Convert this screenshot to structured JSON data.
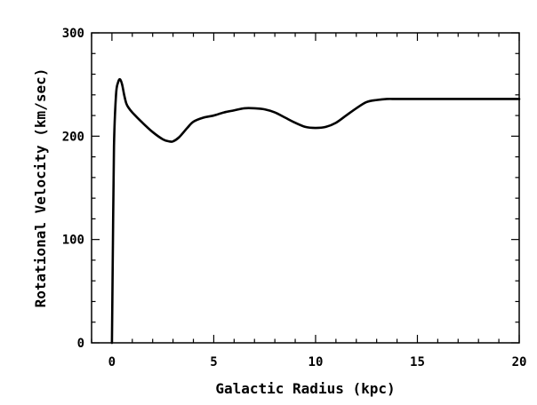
{
  "chart_data": {
    "type": "line",
    "title": "",
    "xlabel": "Galactic Radius (kpc)",
    "ylabel": "Rotational Velocity (km/sec)",
    "xlim": [
      -1,
      20
    ],
    "ylim": [
      0,
      300
    ],
    "x_ticks": [
      0,
      5,
      10,
      15,
      20
    ],
    "y_ticks": [
      0,
      100,
      200,
      300
    ],
    "x_tick_labels": [
      "0",
      "5",
      "10",
      "15",
      "20"
    ],
    "y_tick_labels": [
      "0",
      "100",
      "200",
      "300"
    ],
    "grid": false,
    "legend": "none",
    "series": [
      {
        "color": "#000000",
        "x": [
          0.0,
          0.05,
          0.1,
          0.2,
          0.3,
          0.4,
          0.5,
          0.6,
          0.7,
          0.8,
          1.0,
          1.5,
          2.0,
          2.5,
          2.8,
          3.0,
          3.3,
          3.7,
          4.0,
          4.5,
          5.0,
          5.5,
          6.0,
          6.5,
          7.0,
          7.5,
          8.0,
          8.5,
          9.0,
          9.5,
          10.0,
          10.5,
          11.0,
          11.5,
          12.0,
          12.5,
          13.0,
          13.5,
          14.0,
          15.0,
          16.0,
          17.0,
          18.0,
          19.0,
          20.0
        ],
        "y": [
          0,
          100,
          190,
          240,
          252,
          255,
          250,
          240,
          232,
          228,
          223,
          213,
          204,
          197,
          195,
          195,
          199,
          208,
          214,
          218,
          220,
          223,
          225,
          227,
          227,
          226,
          223,
          218,
          213,
          209,
          208,
          209,
          213,
          220,
          227,
          233,
          235,
          236,
          236,
          236,
          236,
          236,
          236,
          236,
          236
        ]
      }
    ]
  }
}
